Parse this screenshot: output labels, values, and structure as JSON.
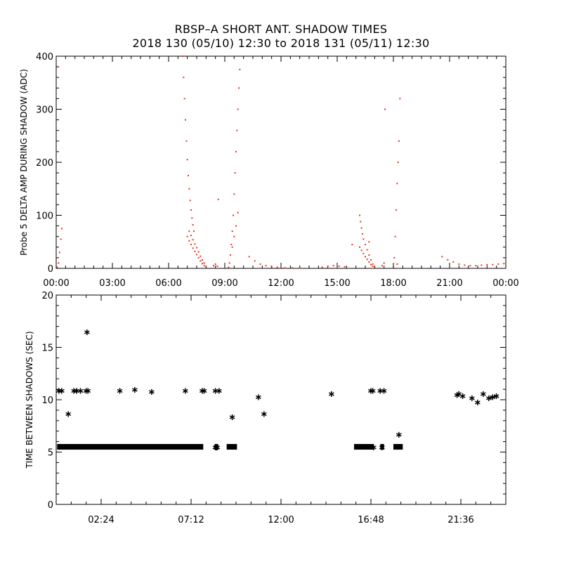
{
  "title": "RBSP–A SHORT ANT. SHADOW TIMES",
  "subtitle": "2018 130 (05/10) 12:30 to 2018 131 (05/11) 12:30",
  "colors": {
    "top_series": "#e8321e",
    "bottom_series": "#000000",
    "axis": "#000000"
  },
  "chart_data": [
    {
      "type": "scatter",
      "title": "",
      "ylabel": "Probe 5 DELTA AMP DURING SHADOW (ADC)",
      "xlabel": "",
      "x_unit": "hours",
      "xlim": [
        0,
        24
      ],
      "ylim": [
        0,
        400
      ],
      "x_ticks": [
        0,
        3,
        6,
        9,
        12,
        15,
        18,
        21,
        24
      ],
      "x_tick_labels": [
        "00:00",
        "03:00",
        "06:00",
        "09:00",
        "12:00",
        "15:00",
        "18:00",
        "21:00",
        "00:00"
      ],
      "y_ticks": [
        0,
        100,
        200,
        300,
        400
      ],
      "y_tick_labels": [
        "0",
        "100",
        "200",
        "300",
        "400"
      ],
      "grid": false,
      "series": [
        {
          "color": "#e8321e",
          "marker": "dot",
          "points": [
            [
              0.05,
              2
            ],
            [
              0.12,
              10
            ],
            [
              0.18,
              30
            ],
            [
              0.25,
              55
            ],
            [
              0.3,
              75
            ],
            [
              0.1,
              380
            ],
            [
              6.75,
              400
            ],
            [
              6.8,
              360
            ],
            [
              6.85,
              320
            ],
            [
              6.9,
              280
            ],
            [
              6.95,
              240
            ],
            [
              7.0,
              205
            ],
            [
              7.05,
              175
            ],
            [
              7.1,
              150
            ],
            [
              7.15,
              128
            ],
            [
              7.2,
              110
            ],
            [
              7.25,
              95
            ],
            [
              7.3,
              82
            ],
            [
              7.35,
              70
            ],
            [
              7.0,
              60
            ],
            [
              7.1,
              52
            ],
            [
              7.2,
              45
            ],
            [
              7.3,
              38
            ],
            [
              7.4,
              32
            ],
            [
              7.5,
              26
            ],
            [
              7.6,
              20
            ],
            [
              7.7,
              14
            ],
            [
              7.8,
              9
            ],
            [
              7.9,
              5
            ],
            [
              8.0,
              3
            ],
            [
              7.1,
              70
            ],
            [
              7.2,
              62
            ],
            [
              7.3,
              54
            ],
            [
              7.4,
              46
            ],
            [
              7.5,
              39
            ],
            [
              7.6,
              31
            ],
            [
              7.7,
              23
            ],
            [
              7.8,
              16
            ],
            [
              7.9,
              10
            ],
            [
              8.4,
              5
            ],
            [
              8.5,
              8
            ],
            [
              8.6,
              4
            ],
            [
              8.65,
              130
            ],
            [
              9.2,
              2
            ],
            [
              9.25,
              10
            ],
            [
              9.3,
              25
            ],
            [
              9.35,
              45
            ],
            [
              9.4,
              70
            ],
            [
              9.45,
              100
            ],
            [
              9.5,
              140
            ],
            [
              9.55,
              180
            ],
            [
              9.6,
              220
            ],
            [
              9.65,
              260
            ],
            [
              9.7,
              300
            ],
            [
              9.75,
              340
            ],
            [
              9.8,
              375
            ],
            [
              9.4,
              40
            ],
            [
              9.5,
              60
            ],
            [
              9.6,
              80
            ],
            [
              9.7,
              105
            ],
            [
              10.3,
              22
            ],
            [
              10.6,
              14
            ],
            [
              10.9,
              8
            ],
            [
              11.2,
              5
            ],
            [
              11.5,
              3
            ],
            [
              11.8,
              2
            ],
            [
              12.2,
              1
            ],
            [
              12.6,
              1
            ],
            [
              13.0,
              1
            ],
            [
              14.2,
              2
            ],
            [
              14.5,
              4
            ],
            [
              14.8,
              5
            ],
            [
              15.1,
              4
            ],
            [
              15.4,
              3
            ],
            [
              15.8,
              45
            ],
            [
              16.2,
              100
            ],
            [
              16.25,
              88
            ],
            [
              16.3,
              76
            ],
            [
              16.35,
              65
            ],
            [
              16.4,
              55
            ],
            [
              16.5,
              45
            ],
            [
              16.6,
              35
            ],
            [
              16.7,
              25
            ],
            [
              16.8,
              16
            ],
            [
              16.9,
              8
            ],
            [
              17.0,
              3
            ],
            [
              16.2,
              40
            ],
            [
              16.3,
              34
            ],
            [
              16.4,
              28
            ],
            [
              16.5,
              22
            ],
            [
              16.6,
              17
            ],
            [
              16.7,
              12
            ],
            [
              16.8,
              7
            ],
            [
              16.9,
              4
            ],
            [
              16.7,
              50
            ],
            [
              17.4,
              5
            ],
            [
              17.5,
              10
            ],
            [
              17.55,
              300
            ],
            [
              18.0,
              3
            ],
            [
              18.05,
              20
            ],
            [
              18.1,
              60
            ],
            [
              18.15,
              110
            ],
            [
              18.2,
              160
            ],
            [
              18.25,
              200
            ],
            [
              18.3,
              240
            ],
            [
              18.35,
              320
            ],
            [
              18.2,
              8
            ],
            [
              20.6,
              22
            ],
            [
              20.9,
              16
            ],
            [
              21.2,
              12
            ],
            [
              21.5,
              8
            ],
            [
              21.8,
              6
            ],
            [
              22.1,
              5
            ],
            [
              22.4,
              5
            ],
            [
              22.7,
              6
            ],
            [
              23.0,
              7
            ],
            [
              23.3,
              7
            ],
            [
              23.6,
              8
            ],
            [
              23.9,
              9
            ]
          ]
        }
      ]
    },
    {
      "type": "scatter",
      "title": "",
      "ylabel": "TIME BETWEEN SHADOWS (SEC)",
      "xlabel": "",
      "x_unit": "hours",
      "xlim": [
        0,
        24
      ],
      "ylim": [
        0,
        20
      ],
      "x_ticks": [
        2.4,
        7.2,
        12,
        16.8,
        21.6
      ],
      "x_tick_labels": [
        "02:24",
        "07:12",
        "12:00",
        "16:48",
        "21:36"
      ],
      "y_ticks": [
        0,
        5,
        10,
        15,
        20
      ],
      "y_tick_labels": [
        "0",
        "5",
        "10",
        "15",
        "20"
      ],
      "grid": false,
      "series": [
        {
          "color": "#000000",
          "marker": "asterisk",
          "points": [
            [
              0.15,
              10.9
            ],
            [
              0.3,
              10.9
            ],
            [
              0.65,
              8.7
            ],
            [
              0.95,
              10.9
            ],
            [
              1.1,
              10.9
            ],
            [
              1.3,
              10.9
            ],
            [
              1.6,
              10.9
            ],
            [
              1.7,
              10.9
            ],
            [
              1.65,
              16.5
            ],
            [
              3.4,
              10.9
            ],
            [
              4.2,
              11.0
            ],
            [
              5.1,
              10.8
            ],
            [
              6.9,
              10.9
            ],
            [
              7.8,
              10.9
            ],
            [
              7.9,
              10.9
            ],
            [
              8.5,
              10.9
            ],
            [
              8.7,
              10.9
            ],
            [
              9.4,
              8.4
            ],
            [
              10.8,
              10.3
            ],
            [
              11.1,
              8.7
            ],
            [
              14.7,
              10.6
            ],
            [
              16.8,
              10.9
            ],
            [
              16.9,
              10.9
            ],
            [
              17.3,
              10.9
            ],
            [
              17.5,
              10.9
            ],
            [
              18.3,
              6.7
            ],
            [
              21.4,
              10.5
            ],
            [
              21.5,
              10.6
            ],
            [
              21.7,
              10.4
            ],
            [
              22.2,
              10.2
            ],
            [
              22.5,
              9.8
            ],
            [
              22.8,
              10.6
            ],
            [
              23.1,
              10.2
            ],
            [
              23.3,
              10.3
            ],
            [
              23.5,
              10.4
            ],
            [
              8.5,
              5.5
            ],
            [
              8.55,
              5.5
            ],
            [
              8.6,
              5.5
            ],
            [
              16.95,
              5.5
            ],
            [
              17.4,
              5.5
            ]
          ],
          "segments": [
            [
              0.05,
              7.85,
              5.5
            ],
            [
              8.45,
              8.65,
              5.5
            ],
            [
              9.1,
              9.65,
              5.5
            ],
            [
              15.9,
              16.95,
              5.5
            ],
            [
              17.3,
              17.5,
              5.5
            ],
            [
              18.0,
              18.5,
              5.5
            ]
          ]
        }
      ]
    }
  ]
}
